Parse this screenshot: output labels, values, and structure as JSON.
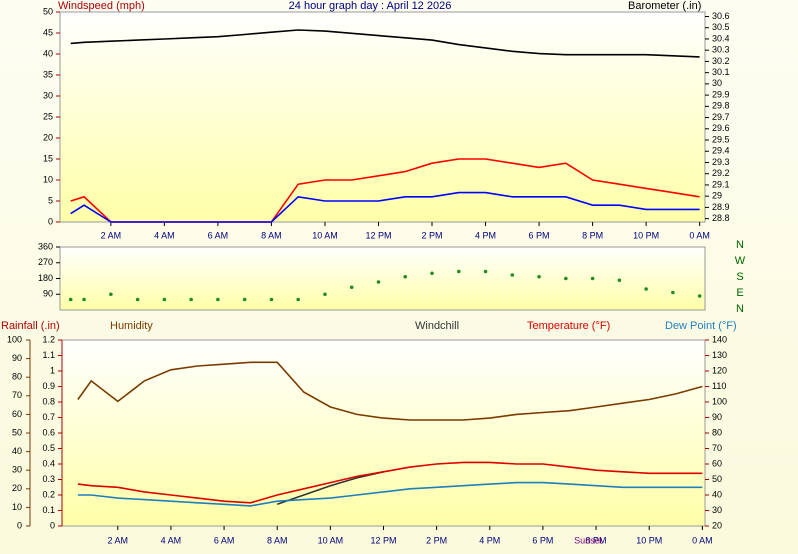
{
  "chart_data": [
    {
      "type": "line",
      "title": "24 hour graph day : April 12 2026",
      "ylabel": "Windspeed (mph)",
      "y2label": "Barometer (.in)",
      "x": [
        0.5,
        1,
        2,
        3,
        4,
        5,
        6,
        7,
        8,
        9,
        10,
        11,
        12,
        13,
        14,
        15,
        16,
        17,
        18,
        19,
        20,
        21,
        22,
        23,
        24
      ],
      "xlim": [
        0.1,
        24.2
      ],
      "xticks": [
        {
          "value": 2,
          "label": "2 AM"
        },
        {
          "value": 4,
          "label": "4 AM"
        },
        {
          "value": 6,
          "label": "6 AM"
        },
        {
          "value": 8,
          "label": "8 AM"
        },
        {
          "value": 10,
          "label": "10 AM"
        },
        {
          "value": 12,
          "label": "12 PM"
        },
        {
          "value": 14,
          "label": "2 PM"
        },
        {
          "value": 16,
          "label": "4 PM"
        },
        {
          "value": 18,
          "label": "6 PM"
        },
        {
          "value": 20,
          "label": "8 PM"
        },
        {
          "value": 22,
          "label": "10 PM"
        },
        {
          "value": 24,
          "label": "0 AM"
        }
      ],
      "ylim": [
        0,
        50
      ],
      "yticks": [
        0,
        5,
        10,
        15,
        20,
        25,
        30,
        35,
        40,
        45,
        50
      ],
      "y2lim": [
        28.77,
        30.64
      ],
      "y2ticks": [
        28.8,
        28.9,
        29,
        29.1,
        29.2,
        29.3,
        29.4,
        29.5,
        29.6,
        29.7,
        29.8,
        29.9,
        30,
        30.1,
        30.2,
        30.3,
        30.4,
        30.5,
        30.6
      ],
      "series": [
        {
          "color": "#ff0000",
          "values": [
            5,
            6,
            0,
            0,
            0,
            0,
            0,
            0,
            0,
            9,
            10,
            10,
            11,
            12,
            14,
            15,
            15,
            14,
            13,
            14,
            10,
            9,
            8,
            7,
            6
          ]
        },
        {
          "color": "#0000ff",
          "values": [
            2,
            4,
            0,
            0,
            0,
            0,
            0,
            0,
            0,
            6,
            5,
            5,
            5,
            6,
            6,
            7,
            7,
            6,
            6,
            6,
            4,
            4,
            3,
            3,
            3
          ]
        },
        {
          "color": "#000000",
          "axis": "y2",
          "values": [
            30.36,
            30.37,
            30.38,
            30.39,
            30.4,
            30.41,
            30.42,
            30.44,
            30.46,
            30.48,
            30.47,
            30.45,
            30.43,
            30.41,
            30.39,
            30.35,
            30.32,
            30.29,
            30.27,
            30.26,
            30.26,
            30.26,
            30.26,
            30.25,
            30.24
          ]
        }
      ]
    },
    {
      "type": "scatter",
      "x": [
        0.5,
        1,
        2,
        3,
        4,
        5,
        6,
        7,
        8,
        9,
        10,
        11,
        12,
        13,
        14,
        15,
        16,
        17,
        18,
        19,
        20,
        21,
        22,
        23,
        24
      ],
      "xlim": [
        0.1,
        24.2
      ],
      "ylim": [
        0,
        360
      ],
      "yticks": [
        90,
        180,
        270,
        360
      ],
      "compass": [
        "N",
        "W",
        "S",
        "E",
        "N"
      ],
      "series": [
        {
          "color": "#228b22",
          "values": [
            60,
            60,
            90,
            60,
            60,
            60,
            60,
            60,
            60,
            60,
            90,
            130,
            160,
            190,
            210,
            220,
            220,
            200,
            190,
            180,
            180,
            170,
            120,
            100,
            80
          ]
        }
      ]
    },
    {
      "type": "line",
      "ylabel": "Rainfall (.in)",
      "x": [
        0.5,
        1,
        2,
        3,
        4,
        5,
        6,
        7,
        8,
        9,
        10,
        11,
        12,
        13,
        14,
        15,
        16,
        17,
        18,
        19,
        20,
        21,
        22,
        23,
        24
      ],
      "xlim": [
        -0.1,
        24.1
      ],
      "xticks": [
        {
          "value": 2,
          "label": "2 AM"
        },
        {
          "value": 4,
          "label": "4 AM"
        },
        {
          "value": 6,
          "label": "6 AM"
        },
        {
          "value": 8,
          "label": "8 AM"
        },
        {
          "value": 10,
          "label": "10 AM"
        },
        {
          "value": 12,
          "label": "12 PM"
        },
        {
          "value": 14,
          "label": "2 PM"
        },
        {
          "value": 16,
          "label": "4 PM"
        },
        {
          "value": 18,
          "label": "6 PM"
        },
        {
          "value": 20,
          "label": "8 PM"
        },
        {
          "value": 22,
          "label": "10 PM"
        },
        {
          "value": 24,
          "label": "0 AM"
        }
      ],
      "annotation": {
        "text": "Sunset",
        "x": 19.7
      },
      "ylim": [
        0,
        1.2
      ],
      "yticks": [
        0,
        0.1,
        0.2,
        0.3,
        0.4,
        0.5,
        0.6,
        0.7,
        0.8,
        0.9,
        1,
        1.1,
        1.2
      ],
      "y3lim": [
        0,
        100
      ],
      "y3ticks": [
        0,
        10,
        20,
        30,
        40,
        50,
        60,
        70,
        80,
        90,
        100
      ],
      "y2lim": [
        20,
        140
      ],
      "y2ticks": [
        20,
        30,
        40,
        50,
        60,
        70,
        80,
        90,
        100,
        110,
        120,
        130,
        140
      ],
      "series": [
        {
          "name": "Humidity",
          "color": "#7a3b00",
          "axis": "y3",
          "values": [
            68,
            78,
            67,
            78,
            84,
            86,
            87,
            88,
            88,
            72,
            64,
            60,
            58,
            57,
            57,
            57,
            58,
            60,
            61,
            62,
            64,
            66,
            68,
            71,
            75
          ]
        },
        {
          "name": "Windchill",
          "color": "#333333",
          "axis": "y2",
          "values": [
            null,
            null,
            null,
            null,
            null,
            null,
            null,
            null,
            34,
            40,
            46,
            51,
            55,
            null,
            null,
            null,
            null,
            null,
            null,
            null,
            null,
            null,
            null,
            null,
            null
          ]
        },
        {
          "name": "Temperature (°F)",
          "color": "#dd0000",
          "axis": "y2",
          "values": [
            47,
            46,
            45,
            42,
            40,
            38,
            36,
            35,
            40,
            44,
            48,
            52,
            55,
            58,
            60,
            61,
            61,
            60,
            60,
            58,
            56,
            55,
            54,
            54,
            54
          ]
        },
        {
          "name": "Dew Point (°F)",
          "color": "#1e7fbf",
          "axis": "y2",
          "values": [
            40,
            40,
            38,
            37,
            36,
            35,
            34,
            33,
            36,
            37,
            38,
            40,
            42,
            44,
            45,
            46,
            47,
            48,
            48,
            47,
            46,
            45,
            45,
            45,
            45
          ]
        }
      ]
    }
  ]
}
